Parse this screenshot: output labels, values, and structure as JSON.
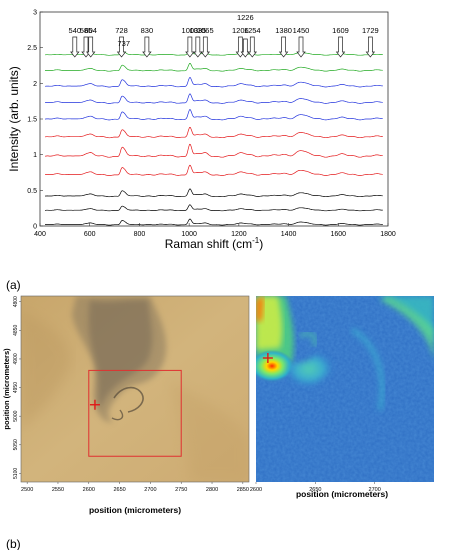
{
  "panel_labels": {
    "a": "(a)",
    "b": "(b)"
  },
  "chart_data": [
    {
      "type": "line",
      "xlabel": "Raman shift (cm",
      "xlabel_sup": "-1",
      "xlabel_close": ")",
      "ylabel": "Intensity (arb. units)",
      "xlim": [
        400,
        1800
      ],
      "ylim": [
        0,
        3
      ],
      "x_ticks": [
        400,
        600,
        800,
        1000,
        1200,
        1400,
        1600,
        1800
      ],
      "y_ticks": [
        0,
        0.5,
        1,
        1.5,
        2,
        2.5,
        3
      ],
      "grid": false,
      "peak_labels": [
        540,
        585,
        604,
        728,
        737,
        830,
        1003,
        1035,
        1065,
        1206,
        1226,
        1254,
        1380,
        1450,
        1609,
        1729
      ],
      "peak_widths": [
        12,
        10,
        10,
        5,
        8,
        16,
        7,
        12,
        12,
        14,
        14,
        14,
        15,
        18,
        18,
        18
      ],
      "peak_amps": [
        0.02,
        0.03,
        0.03,
        0.07,
        0.09,
        0.01,
        0.18,
        0.03,
        0.035,
        0.025,
        0.025,
        0.02,
        0.02,
        0.06,
        0.02,
        0.008
      ],
      "series": [
        {
          "values_offset": 0.02,
          "color": "#000000",
          "scale": 0.35
        },
        {
          "values_offset": 0.22,
          "color": "#000000",
          "scale": 0.35
        },
        {
          "values_offset": 0.42,
          "color": "#000000",
          "scale": 0.45
        },
        {
          "values_offset": 0.72,
          "color": "#e41a1c",
          "scale": 0.6
        },
        {
          "values_offset": 0.98,
          "color": "#e41a1c",
          "scale": 0.75
        },
        {
          "values_offset": 1.25,
          "color": "#e41a1c",
          "scale": 0.6
        },
        {
          "values_offset": 1.5,
          "color": "#2233dd",
          "scale": 0.6
        },
        {
          "values_offset": 1.73,
          "color": "#2233dd",
          "scale": 0.55
        },
        {
          "values_offset": 1.96,
          "color": "#2233dd",
          "scale": 0.55
        },
        {
          "values_offset": 2.18,
          "color": "#22aa22",
          "scale": 0.45
        },
        {
          "values_offset": 2.4,
          "color": "#22aa22",
          "scale": 0.3
        }
      ]
    },
    {
      "type": "image",
      "xlabel": "position (micrometers)",
      "ylabel": "position (micrometers)",
      "x_ticks": [
        2500,
        2550,
        2600,
        2650,
        2700,
        2750,
        2800,
        2850
      ],
      "y_ticks": [
        4800,
        4850,
        4900,
        4950,
        5000,
        5050,
        5100
      ],
      "xlim": [
        2490,
        2860
      ],
      "ylim": [
        4790,
        5115
      ],
      "roi_rect": {
        "x0": 2600,
        "x1": 2750,
        "y0": 4920,
        "y1": 5070
      },
      "marker": {
        "x": 2610,
        "y": 4980
      }
    },
    {
      "type": "heatmap",
      "xlabel": "position (micrometers)",
      "x_ticks": [
        2600,
        2650,
        2700
      ],
      "xlim": [
        2600,
        2750
      ],
      "marker": {
        "x": 2610,
        "y": 4980
      }
    }
  ]
}
